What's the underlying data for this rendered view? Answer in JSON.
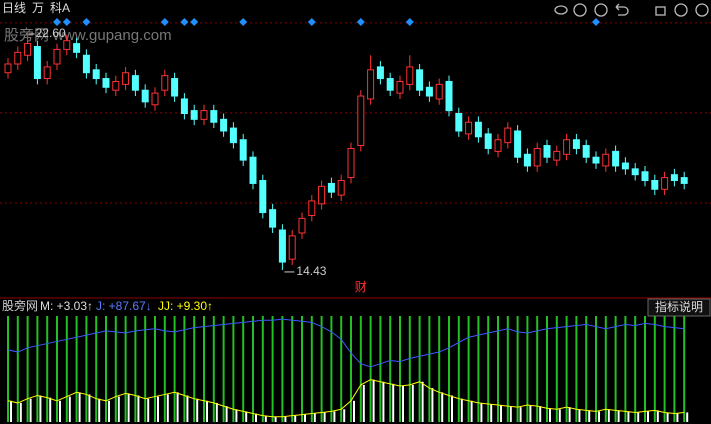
{
  "chart_data": {
    "type": "candlestick",
    "toolbar": {
      "period": "日线",
      "unit": "万",
      "stock": "科A"
    },
    "watermark": "股旁网 www.gupang.com",
    "max_label": "22.60",
    "min_label": "14.43",
    "event_marker": "财",
    "ylim": [
      13.57,
      23.01
    ],
    "grid_lines": [
      22.91,
      19.82,
      16.73
    ],
    "up_color": "#ff3232",
    "down_color": "#54ffff",
    "signals": [
      5,
      6,
      8,
      16,
      18,
      19,
      24,
      31,
      36,
      41,
      60
    ],
    "open": [
      21.2,
      21.5,
      21.8,
      22.1,
      21.0,
      21.5,
      22.0,
      22.2,
      21.8,
      21.3,
      21.0,
      20.6,
      20.8,
      21.1,
      20.6,
      20.1,
      20.6,
      21.0,
      20.3,
      19.9,
      19.6,
      19.9,
      19.6,
      19.3,
      18.9,
      18.3,
      17.5,
      16.5,
      15.8,
      14.8,
      15.7,
      16.3,
      16.7,
      17.4,
      17.0,
      17.6,
      18.7,
      20.3,
      21.4,
      21.0,
      20.5,
      20.8,
      21.3,
      20.7,
      20.3,
      20.9,
      19.8,
      19.1,
      19.5,
      19.1,
      18.5,
      18.8,
      19.2,
      18.4,
      18.0,
      18.7,
      18.2,
      18.4,
      18.9,
      18.7,
      18.3,
      18.0,
      18.5,
      18.1,
      17.9,
      17.8,
      17.5,
      17.2,
      17.7,
      17.6
    ],
    "high": [
      21.7,
      22.1,
      22.6,
      22.3,
      21.6,
      22.2,
      22.5,
      22.4,
      22.0,
      21.5,
      21.2,
      21.1,
      21.4,
      21.3,
      20.8,
      20.7,
      21.3,
      21.2,
      20.5,
      20.1,
      20.1,
      20.1,
      19.8,
      19.5,
      19.1,
      18.5,
      17.7,
      16.7,
      16.0,
      15.8,
      16.4,
      17.0,
      17.5,
      17.6,
      17.7,
      18.8,
      20.6,
      21.8,
      21.6,
      21.2,
      21.1,
      21.8,
      21.5,
      20.9,
      21.0,
      21.1,
      20.0,
      19.7,
      19.7,
      19.3,
      19.1,
      19.5,
      19.4,
      18.6,
      18.8,
      18.9,
      18.7,
      19.1,
      19.1,
      18.9,
      18.5,
      18.6,
      18.7,
      18.3,
      18.1,
      18.0,
      17.7,
      17.8,
      17.9,
      17.8
    ],
    "low": [
      21.0,
      21.3,
      21.6,
      20.8,
      20.8,
      21.3,
      21.8,
      21.7,
      21.0,
      20.8,
      20.5,
      20.4,
      20.6,
      20.4,
      20.0,
      19.9,
      20.4,
      20.2,
      19.6,
      19.4,
      19.4,
      19.3,
      19.0,
      18.6,
      18.0,
      17.2,
      16.2,
      15.7,
      14.43,
      14.6,
      15.5,
      16.1,
      16.5,
      16.9,
      16.8,
      17.4,
      18.5,
      20.1,
      20.8,
      20.4,
      20.3,
      20.6,
      20.4,
      20.2,
      20.1,
      19.7,
      19.0,
      18.9,
      18.8,
      18.4,
      18.3,
      18.6,
      18.1,
      17.8,
      17.8,
      18.1,
      18.0,
      18.2,
      18.4,
      18.1,
      17.9,
      17.8,
      17.8,
      17.7,
      17.5,
      17.3,
      17.0,
      17.0,
      17.3,
      17.2
    ],
    "close": [
      21.5,
      21.9,
      22.2,
      21.0,
      21.4,
      22.0,
      22.3,
      21.9,
      21.2,
      21.0,
      20.7,
      20.9,
      21.2,
      20.6,
      20.2,
      20.5,
      21.1,
      20.4,
      19.8,
      19.6,
      19.9,
      19.5,
      19.2,
      18.8,
      18.2,
      17.4,
      16.4,
      15.9,
      14.7,
      15.6,
      16.2,
      16.8,
      17.3,
      17.1,
      17.5,
      18.6,
      20.4,
      21.3,
      21.0,
      20.6,
      20.9,
      21.4,
      20.6,
      20.4,
      20.8,
      19.9,
      19.2,
      19.5,
      19.0,
      18.6,
      18.9,
      19.3,
      18.3,
      18.0,
      18.6,
      18.3,
      18.5,
      18.9,
      18.6,
      18.3,
      18.1,
      18.4,
      18.0,
      17.9,
      17.7,
      17.5,
      17.2,
      17.6,
      17.5,
      17.4
    ],
    "indicator": {
      "name": "股旁网",
      "m_label": "M: +3.03↑",
      "j_label": "J: +87.67↓",
      "jj_label": "JJ: +9.30↑",
      "button": "指标说明",
      "ylim": [
        0,
        100
      ],
      "series": [
        {
          "name": "J",
          "color": "#3a5cff",
          "values": [
            68,
            66,
            70,
            72,
            74,
            76,
            78,
            80,
            82,
            84,
            86,
            85,
            84,
            86,
            87,
            88,
            86,
            85,
            87,
            89,
            90,
            91,
            92,
            93,
            94,
            95,
            96,
            96,
            97,
            96,
            95,
            94,
            90,
            85,
            78,
            65,
            55,
            52,
            55,
            58,
            57,
            60,
            62,
            64,
            66,
            70,
            75,
            80,
            82,
            84,
            86,
            88,
            85,
            84,
            86,
            88,
            89,
            90,
            91,
            92,
            90,
            88,
            90,
            92,
            91,
            93,
            92,
            90,
            89,
            88
          ]
        },
        {
          "name": "JJ",
          "color": "#ffff00",
          "values": [
            20,
            18,
            22,
            25,
            23,
            20,
            24,
            28,
            26,
            22,
            20,
            24,
            27,
            25,
            22,
            24,
            26,
            28,
            25,
            22,
            20,
            18,
            15,
            12,
            10,
            8,
            6,
            5,
            5,
            6,
            7,
            8,
            9,
            10,
            12,
            20,
            35,
            40,
            38,
            36,
            34,
            35,
            38,
            32,
            28,
            25,
            22,
            20,
            18,
            17,
            16,
            15,
            14,
            16,
            15,
            13,
            12,
            14,
            12,
            11,
            10,
            12,
            11,
            10,
            9,
            10,
            11,
            9,
            8,
            9
          ]
        }
      ]
    }
  }
}
